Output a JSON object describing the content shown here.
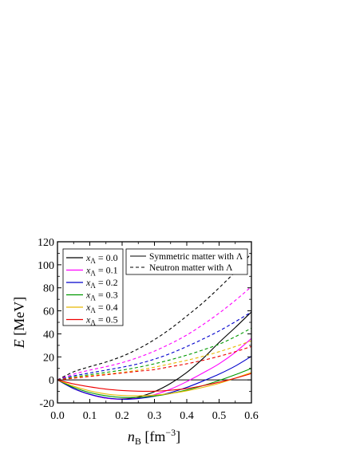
{
  "chart_data": {
    "type": "line",
    "xlabel": {
      "var": "n",
      "sub": "B",
      "unit_open": " [fm",
      "unit_exp": "−3",
      "unit_close": "]"
    },
    "ylabel": {
      "var": "E",
      "unit": " [MeV]"
    },
    "xlim": [
      0.0,
      0.6
    ],
    "ylim": [
      -20,
      120
    ],
    "x_ticks": [
      "0.0",
      "0.1",
      "0.2",
      "0.3",
      "0.4",
      "0.5",
      "0.6"
    ],
    "y_ticks": [
      "-20",
      "0",
      "20",
      "40",
      "60",
      "80",
      "100",
      "120"
    ],
    "grid": false,
    "zero_line": true,
    "legend_fraction": {
      "var": "x",
      "sub": "Λ"
    },
    "legend_style": [
      {
        "label": "Symmetric matter with Λ",
        "dash": "solid"
      },
      {
        "label": "Neutron matter with Λ",
        "dash": "dashed"
      }
    ],
    "series": [
      {
        "name": "0.0",
        "color": "#000000",
        "symmetric": {
          "x": [
            0.0,
            0.05,
            0.1,
            0.15,
            0.2,
            0.25,
            0.3,
            0.35,
            0.4,
            0.45,
            0.5,
            0.55,
            0.6
          ],
          "y": [
            0,
            -7.5,
            -12.5,
            -15.8,
            -16.6,
            -14.8,
            -10.2,
            -3.0,
            6.5,
            18.5,
            32.5,
            45.5,
            59.0
          ]
        },
        "neutron": {
          "x": [
            0.0,
            0.05,
            0.1,
            0.15,
            0.2,
            0.25,
            0.3,
            0.35,
            0.4,
            0.45,
            0.5,
            0.55,
            0.6
          ],
          "y": [
            0,
            7.0,
            11.5,
            15.5,
            20.5,
            27.0,
            35.0,
            44.5,
            55.5,
            67.0,
            80.0,
            94.0,
            110.0
          ]
        }
      },
      {
        "name": "0.1",
        "color": "#ff00ff",
        "symmetric": {
          "x": [
            0.0,
            0.05,
            0.1,
            0.15,
            0.2,
            0.25,
            0.3,
            0.35,
            0.4,
            0.45,
            0.5,
            0.55,
            0.6
          ],
          "y": [
            0,
            -7.5,
            -12.6,
            -15.8,
            -16.8,
            -15.8,
            -12.8,
            -8.0,
            -1.5,
            6.0,
            14.0,
            24.0,
            36.0
          ]
        },
        "neutron": {
          "x": [
            0.0,
            0.05,
            0.1,
            0.15,
            0.2,
            0.25,
            0.3,
            0.35,
            0.4,
            0.45,
            0.5,
            0.55,
            0.6
          ],
          "y": [
            0,
            5.0,
            8.5,
            11.5,
            15.0,
            19.5,
            25.0,
            31.5,
            39.0,
            48.0,
            58.0,
            69.0,
            81.0
          ]
        }
      },
      {
        "name": "0.2",
        "color": "#0000cc",
        "symmetric": {
          "x": [
            0.0,
            0.05,
            0.1,
            0.15,
            0.2,
            0.25,
            0.3,
            0.35,
            0.4,
            0.45,
            0.5,
            0.55,
            0.6
          ],
          "y": [
            0,
            -7.5,
            -12.5,
            -15.5,
            -16.8,
            -16.2,
            -14.2,
            -11.0,
            -6.5,
            -1.0,
            5.0,
            12.0,
            20.5
          ]
        },
        "neutron": {
          "x": [
            0.0,
            0.05,
            0.1,
            0.15,
            0.2,
            0.25,
            0.3,
            0.35,
            0.4,
            0.45,
            0.5,
            0.55,
            0.6
          ],
          "y": [
            0,
            3.5,
            6.0,
            8.5,
            11.0,
            14.0,
            18.0,
            23.0,
            29.0,
            35.5,
            42.5,
            50.5,
            59.0
          ]
        }
      },
      {
        "name": "0.3",
        "color": "#009900",
        "symmetric": {
          "x": [
            0.0,
            0.05,
            0.1,
            0.15,
            0.2,
            0.25,
            0.3,
            0.35,
            0.4,
            0.45,
            0.5,
            0.55,
            0.6
          ],
          "y": [
            0,
            -6.5,
            -11.0,
            -13.8,
            -15.2,
            -15.2,
            -14.0,
            -11.8,
            -8.8,
            -5.0,
            -0.5,
            4.5,
            10.0
          ]
        },
        "neutron": {
          "x": [
            0.0,
            0.05,
            0.1,
            0.15,
            0.2,
            0.25,
            0.3,
            0.35,
            0.4,
            0.45,
            0.5,
            0.55,
            0.6
          ],
          "y": [
            0,
            2.5,
            4.5,
            6.5,
            8.5,
            11.0,
            14.0,
            17.5,
            21.5,
            26.0,
            31.0,
            37.5,
            45.0
          ]
        }
      },
      {
        "name": "0.4",
        "color": "#e6b800",
        "symmetric": {
          "x": [
            0.0,
            0.05,
            0.1,
            0.15,
            0.2,
            0.25,
            0.3,
            0.35,
            0.4,
            0.45,
            0.5,
            0.55,
            0.6
          ],
          "y": [
            0,
            -5.5,
            -9.5,
            -12.2,
            -13.5,
            -13.8,
            -13.2,
            -11.8,
            -9.5,
            -6.5,
            -3.0,
            1.5,
            6.5
          ]
        },
        "neutron": {
          "x": [
            0.0,
            0.05,
            0.1,
            0.15,
            0.2,
            0.25,
            0.3,
            0.35,
            0.4,
            0.45,
            0.5,
            0.55,
            0.6
          ],
          "y": [
            0,
            2.0,
            3.5,
            5.0,
            6.5,
            8.5,
            11.0,
            14.0,
            17.0,
            20.5,
            24.5,
            29.0,
            34.0
          ]
        }
      },
      {
        "name": "0.5",
        "color": "#ee0000",
        "symmetric": {
          "x": [
            0.0,
            0.05,
            0.1,
            0.15,
            0.2,
            0.25,
            0.3,
            0.35,
            0.4,
            0.45,
            0.5,
            0.55,
            0.6
          ],
          "y": [
            0,
            -3.5,
            -6.0,
            -8.0,
            -9.2,
            -9.8,
            -9.8,
            -9.0,
            -7.5,
            -5.0,
            -2.0,
            1.5,
            5.5
          ]
        },
        "neutron": {
          "x": [
            0.0,
            0.05,
            0.1,
            0.15,
            0.2,
            0.25,
            0.3,
            0.35,
            0.4,
            0.45,
            0.5,
            0.55,
            0.6
          ],
          "y": [
            0,
            1.5,
            3.0,
            4.5,
            6.0,
            7.5,
            9.0,
            11.5,
            14.0,
            17.0,
            20.5,
            24.5,
            29.0
          ]
        }
      }
    ]
  }
}
